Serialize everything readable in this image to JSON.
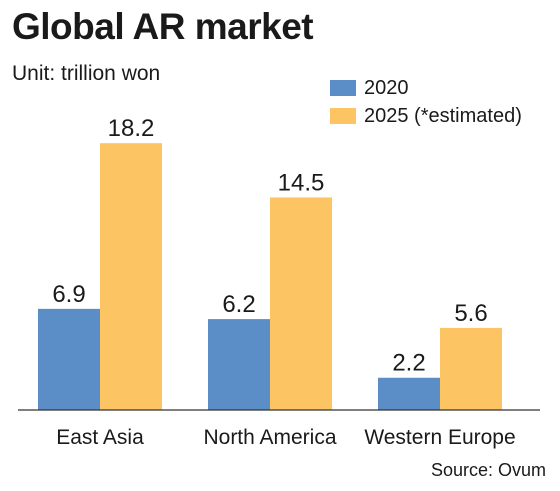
{
  "chart_data": {
    "type": "bar",
    "title": "Global AR market",
    "subtitle": "Unit: trillion won",
    "categories": [
      "East Asia",
      "North America",
      "Western Europe"
    ],
    "series": [
      {
        "name": "2020",
        "values": [
          6.9,
          6.2,
          2.2
        ],
        "color": "#5b8ec6"
      },
      {
        "name": "2025 (*estimated)",
        "values": [
          18.2,
          14.5,
          5.6
        ],
        "color": "#fcc463"
      }
    ],
    "ylim": [
      0,
      20
    ],
    "legend_position": "top-right",
    "grid": false,
    "data_labels": true,
    "source": "Source: Ovum"
  }
}
